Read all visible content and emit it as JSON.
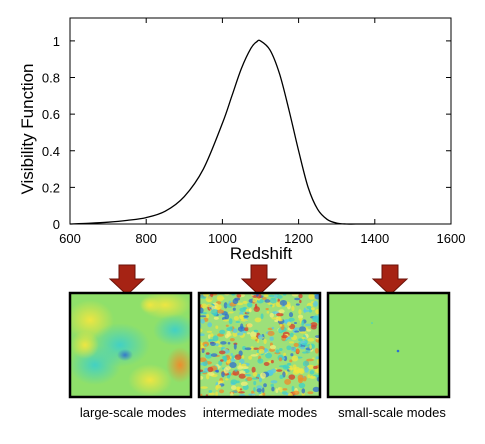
{
  "chart_data": {
    "type": "line",
    "xlabel": "Redshift",
    "ylabel": "Visibility Function",
    "xlim": [
      600,
      1600
    ],
    "ylim": [
      0,
      1.1
    ],
    "x_ticks": [
      "600",
      "800",
      "1000",
      "1200",
      "1400",
      "1600"
    ],
    "y_ticks": [
      "0",
      "0.2",
      "0.4",
      "0.6",
      "0.8",
      "1"
    ],
    "grid": false,
    "series": [
      {
        "x": [
          600,
          650,
          700,
          750,
          800,
          850,
          900,
          950,
          1000,
          1025,
          1050,
          1075,
          1090,
          1100,
          1125,
          1150,
          1175,
          1200,
          1225,
          1250,
          1275,
          1300,
          1325,
          1350,
          1400
        ],
        "y": [
          0.0,
          0.004,
          0.01,
          0.02,
          0.035,
          0.07,
          0.15,
          0.3,
          0.55,
          0.7,
          0.85,
          0.96,
          0.995,
          1.0,
          0.95,
          0.82,
          0.62,
          0.4,
          0.2,
          0.08,
          0.025,
          0.005,
          0.0,
          0.0,
          0.0
        ]
      }
    ]
  },
  "panels": [
    {
      "label": "large-scale modes",
      "arrow_color": "#a62314"
    },
    {
      "label": "intermediate modes",
      "arrow_color": "#a62314"
    },
    {
      "label": "small-scale modes",
      "arrow_color": "#a62314"
    }
  ]
}
